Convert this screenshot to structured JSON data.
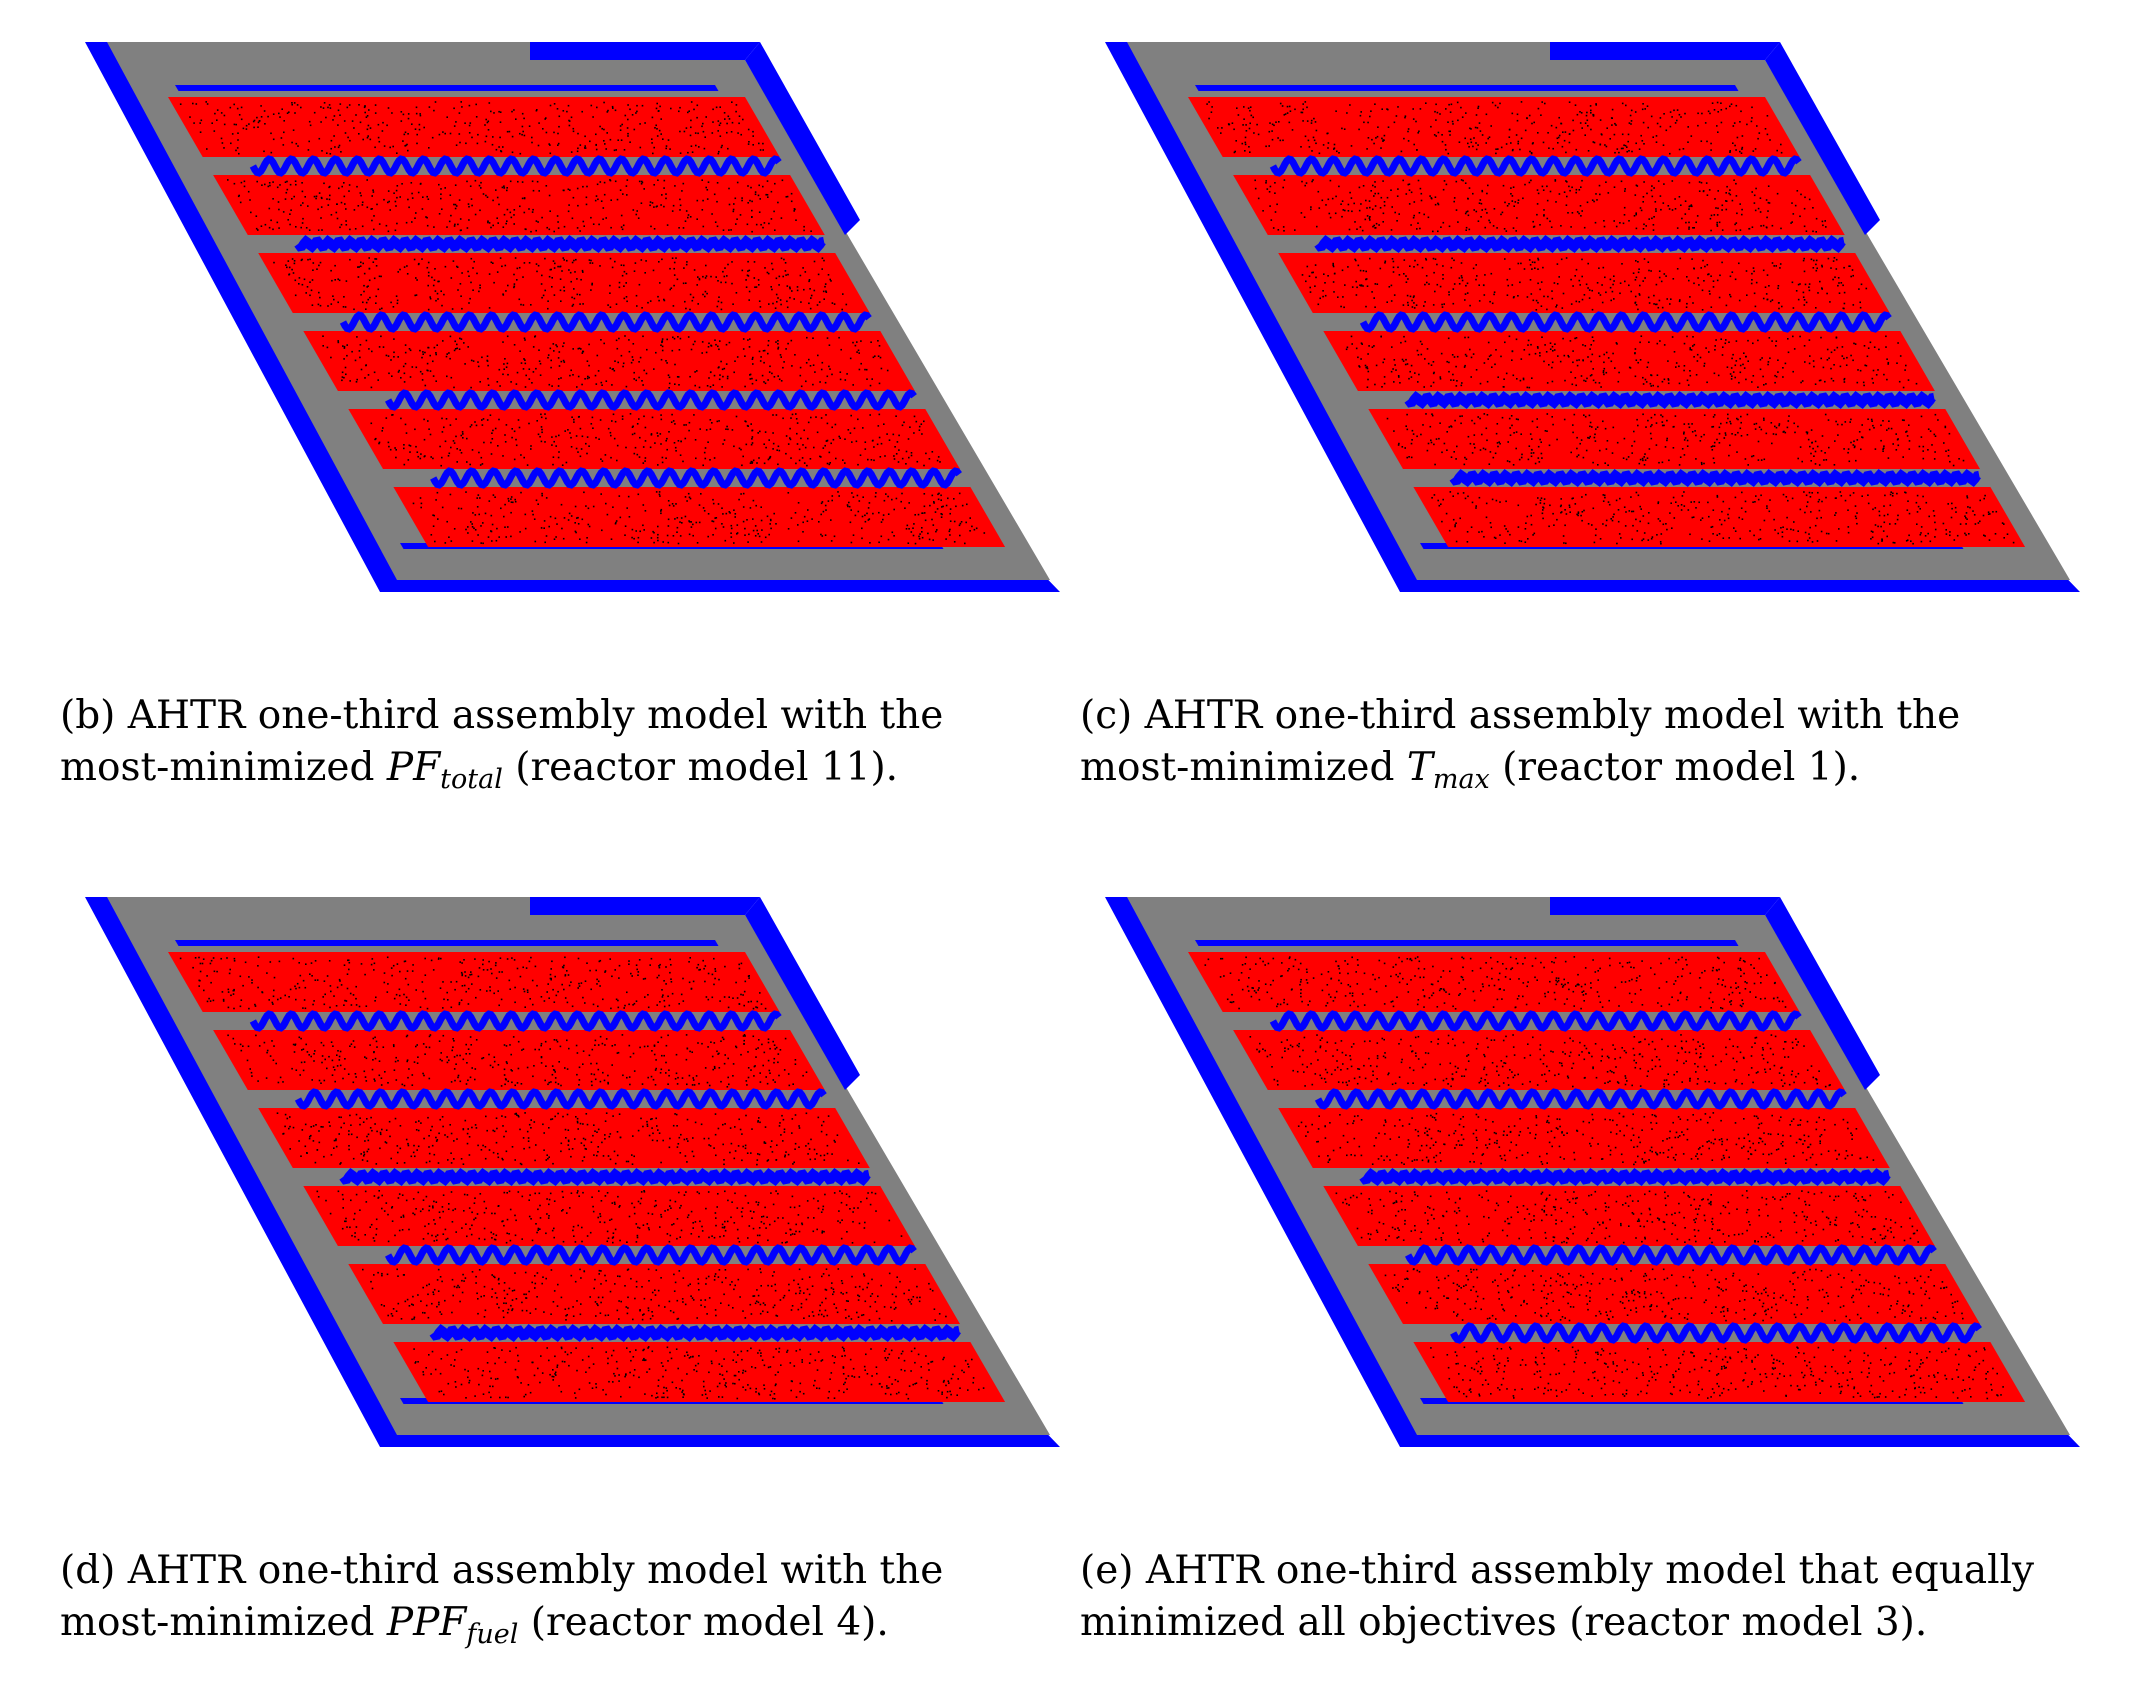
{
  "panels": [
    {
      "id": "b",
      "caption": {
        "line1": "(b) AHTR one-third assembly model with the",
        "line2_pre": "most-minimized ",
        "math_main": "PF",
        "math_sub": "total",
        "line2_post": " (reactor model 11)."
      },
      "stripes": [
        {
          "wavy": true
        },
        {
          "wavy": false
        },
        {
          "wavy": true
        },
        {
          "wavy": true
        },
        {
          "wavy": true
        }
      ]
    },
    {
      "id": "c",
      "caption": {
        "line1": "(c) AHTR one-third assembly model with the",
        "line2_pre": "most-minimized ",
        "math_main": "T",
        "math_sub": "max",
        "line2_post": " (reactor model 1)."
      },
      "stripes": [
        {
          "wavy": true
        },
        {
          "wavy": false
        },
        {
          "wavy": true
        },
        {
          "wavy": false
        },
        {
          "wavy": false
        }
      ]
    },
    {
      "id": "d",
      "caption": {
        "line1": "(d) AHTR one-third assembly model with the",
        "line2_pre": "most-minimized ",
        "math_main": "PPF",
        "math_sub": "fuel",
        "line2_post": " (reactor model 4)."
      },
      "stripes": [
        {
          "wavy": true
        },
        {
          "wavy": true
        },
        {
          "wavy": false
        },
        {
          "wavy": true
        },
        {
          "wavy": false
        }
      ]
    },
    {
      "id": "e",
      "caption": {
        "line1": "(e) AHTR one-third assembly model that equally",
        "line2_pre": "minimized all objectives (reactor model 3).",
        "math_main": "",
        "math_sub": "",
        "line2_post": ""
      },
      "stripes": [
        {
          "wavy": true
        },
        {
          "wavy": true
        },
        {
          "wavy": false
        },
        {
          "wavy": true
        },
        {
          "wavy": true
        }
      ]
    }
  ],
  "colors": {
    "graphite": "#808080",
    "coolant": "#0000ff",
    "fuel": "#ff0000",
    "particles": "#000000"
  }
}
